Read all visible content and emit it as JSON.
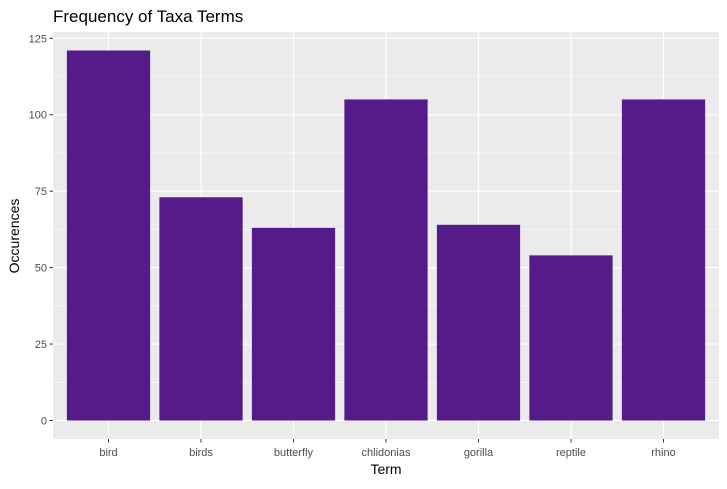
{
  "chart_data": {
    "type": "bar",
    "title": "Frequency of Taxa Terms",
    "xlabel": "Term",
    "ylabel": "Occurences",
    "categories": [
      "bird",
      "birds",
      "butterfly",
      "chlidonias",
      "gorilla",
      "reptile",
      "rhino"
    ],
    "values": [
      121,
      73,
      63,
      105,
      64,
      54,
      105
    ],
    "ylim": [
      -6.05,
      127.05
    ],
    "yticks": [
      0,
      25,
      50,
      75,
      100,
      125
    ],
    "grid": true,
    "legend": "none",
    "colors": {
      "bar": "#541b89",
      "panel": "#ebebeb",
      "grid": "#ffffff",
      "text": "#4d4d4d",
      "title": "#000000"
    }
  }
}
